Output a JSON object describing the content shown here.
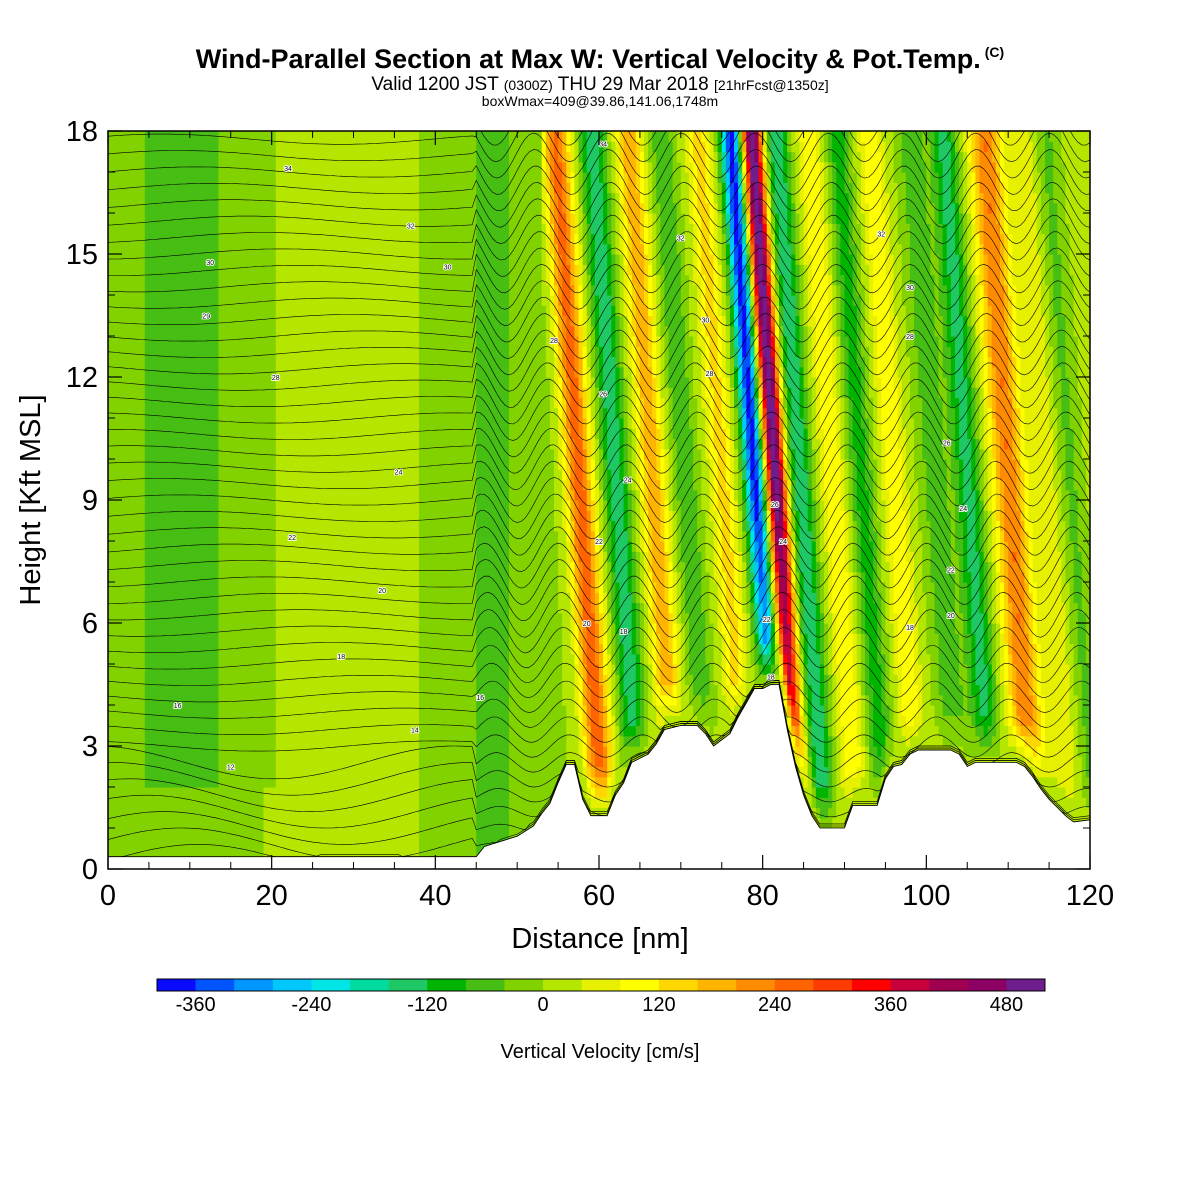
{
  "header": {
    "title": "Wind-Parallel Section at Max W: Vertical Velocity & Pot.Temp.",
    "title_units": "(C)",
    "valid_prefix": "Valid 1200 JST",
    "valid_z": "(0300Z)",
    "valid_date": "THU 29 Mar 2018",
    "valid_fcst": "[21hrFcst@1350z]",
    "box_info": "boxWmax=409@39.86,141.06,1748m"
  },
  "chart_data": {
    "type": "heatmap",
    "xlabel": "Distance [nm]",
    "ylabel": "Height [Kft MSL]",
    "xlim": [
      0,
      120
    ],
    "ylim": [
      0,
      18
    ],
    "xticks": [
      "0",
      "20",
      "40",
      "60",
      "80",
      "100",
      "120"
    ],
    "yticks": [
      "0",
      "3",
      "6",
      "9",
      "12",
      "15",
      "18"
    ],
    "colorbar": {
      "label": "Vertical Velocity [cm/s]",
      "tick_labels": [
        "-360",
        "-240",
        "-120",
        "0",
        "120",
        "240",
        "360",
        "480"
      ],
      "levels": [
        -400,
        -360,
        -320,
        -280,
        -240,
        -200,
        -160,
        -120,
        -80,
        -40,
        0,
        40,
        80,
        120,
        160,
        200,
        240,
        280,
        320,
        360,
        400,
        440,
        480,
        520
      ],
      "colors": [
        "#0a0aff",
        "#0055ff",
        "#0096ff",
        "#00c8ff",
        "#00e6e6",
        "#00dca0",
        "#1ec864",
        "#00b400",
        "#46be14",
        "#82d200",
        "#b4e600",
        "#e6f000",
        "#ffff00",
        "#ffd700",
        "#ffb400",
        "#ff8c00",
        "#ff6400",
        "#ff3c00",
        "#ff0000",
        "#c8003c",
        "#a00050",
        "#8c0064",
        "#6e1e8c"
      ]
    },
    "terrain_kft": [
      [
        0,
        0.3
      ],
      [
        45,
        0.3
      ],
      [
        46,
        0.55
      ],
      [
        50,
        0.8
      ],
      [
        52,
        1.05
      ],
      [
        53,
        1.35
      ],
      [
        54,
        1.6
      ],
      [
        55,
        2.1
      ],
      [
        56,
        2.55
      ],
      [
        57,
        2.55
      ],
      [
        58,
        1.7
      ],
      [
        59,
        1.3
      ],
      [
        61,
        1.3
      ],
      [
        62,
        1.8
      ],
      [
        63,
        2.1
      ],
      [
        64,
        2.6
      ],
      [
        65,
        2.7
      ],
      [
        66,
        2.8
      ],
      [
        67,
        3.05
      ],
      [
        68,
        3.4
      ],
      [
        70,
        3.5
      ],
      [
        72,
        3.5
      ],
      [
        73,
        3.3
      ],
      [
        74,
        3.0
      ],
      [
        76,
        3.3
      ],
      [
        77,
        3.7
      ],
      [
        78,
        4.05
      ],
      [
        79,
        4.4
      ],
      [
        80,
        4.4
      ],
      [
        81,
        4.5
      ],
      [
        82,
        4.5
      ],
      [
        83,
        3.4
      ],
      [
        84,
        2.5
      ],
      [
        85,
        1.8
      ],
      [
        86,
        1.3
      ],
      [
        87,
        1.0
      ],
      [
        90,
        1.0
      ],
      [
        91,
        1.55
      ],
      [
        94,
        1.55
      ],
      [
        95,
        2.2
      ],
      [
        96,
        2.5
      ],
      [
        97,
        2.55
      ],
      [
        98,
        2.8
      ],
      [
        99,
        2.9
      ],
      [
        103,
        2.9
      ],
      [
        104,
        2.8
      ],
      [
        105,
        2.5
      ],
      [
        106,
        2.6
      ],
      [
        111,
        2.6
      ],
      [
        112,
        2.5
      ],
      [
        113,
        2.25
      ],
      [
        114,
        1.95
      ],
      [
        115,
        1.7
      ],
      [
        116,
        1.5
      ],
      [
        117,
        1.3
      ],
      [
        118,
        1.15
      ],
      [
        120,
        1.2
      ]
    ],
    "theta_contour_labels": [
      {
        "x": 22,
        "y": 17.1,
        "text": "34"
      },
      {
        "x": 37,
        "y": 15.7,
        "text": "32"
      },
      {
        "x": 41.5,
        "y": 14.7,
        "text": "30"
      },
      {
        "x": 12.5,
        "y": 14.8,
        "text": "30"
      },
      {
        "x": 12,
        "y": 13.5,
        "text": "29"
      },
      {
        "x": 20.5,
        "y": 12.0,
        "text": "28"
      },
      {
        "x": 35.5,
        "y": 9.7,
        "text": "24"
      },
      {
        "x": 22.5,
        "y": 8.1,
        "text": "22"
      },
      {
        "x": 33.5,
        "y": 6.8,
        "text": "20"
      },
      {
        "x": 28.5,
        "y": 5.2,
        "text": "18"
      },
      {
        "x": 45.5,
        "y": 4.2,
        "text": "16"
      },
      {
        "x": 8.5,
        "y": 4.0,
        "text": "16"
      },
      {
        "x": 37.5,
        "y": 3.4,
        "text": "14"
      },
      {
        "x": 15,
        "y": 2.5,
        "text": "12"
      },
      {
        "x": 54.5,
        "y": 12.9,
        "text": "28"
      },
      {
        "x": 60.5,
        "y": 17.7,
        "text": "34"
      },
      {
        "x": 70,
        "y": 15.4,
        "text": "32"
      },
      {
        "x": 73,
        "y": 13.4,
        "text": "30"
      },
      {
        "x": 73.5,
        "y": 12.1,
        "text": "28"
      },
      {
        "x": 60.5,
        "y": 11.6,
        "text": "26"
      },
      {
        "x": 63.5,
        "y": 9.5,
        "text": "24"
      },
      {
        "x": 60,
        "y": 8.0,
        "text": "22"
      },
      {
        "x": 58.5,
        "y": 6.0,
        "text": "20"
      },
      {
        "x": 63,
        "y": 5.8,
        "text": "18"
      },
      {
        "x": 81.5,
        "y": 8.9,
        "text": "26"
      },
      {
        "x": 82.5,
        "y": 8.0,
        "text": "24"
      },
      {
        "x": 80.5,
        "y": 6.1,
        "text": "22"
      },
      {
        "x": 81,
        "y": 4.7,
        "text": "18"
      },
      {
        "x": 94.5,
        "y": 15.5,
        "text": "32"
      },
      {
        "x": 98,
        "y": 14.2,
        "text": "30"
      },
      {
        "x": 98,
        "y": 13.0,
        "text": "28"
      },
      {
        "x": 102.5,
        "y": 10.4,
        "text": "26"
      },
      {
        "x": 104.5,
        "y": 8.8,
        "text": "24"
      },
      {
        "x": 103,
        "y": 7.3,
        "text": "22"
      },
      {
        "x": 103,
        "y": 6.2,
        "text": "20"
      },
      {
        "x": 98,
        "y": 5.9,
        "text": "18"
      }
    ]
  }
}
